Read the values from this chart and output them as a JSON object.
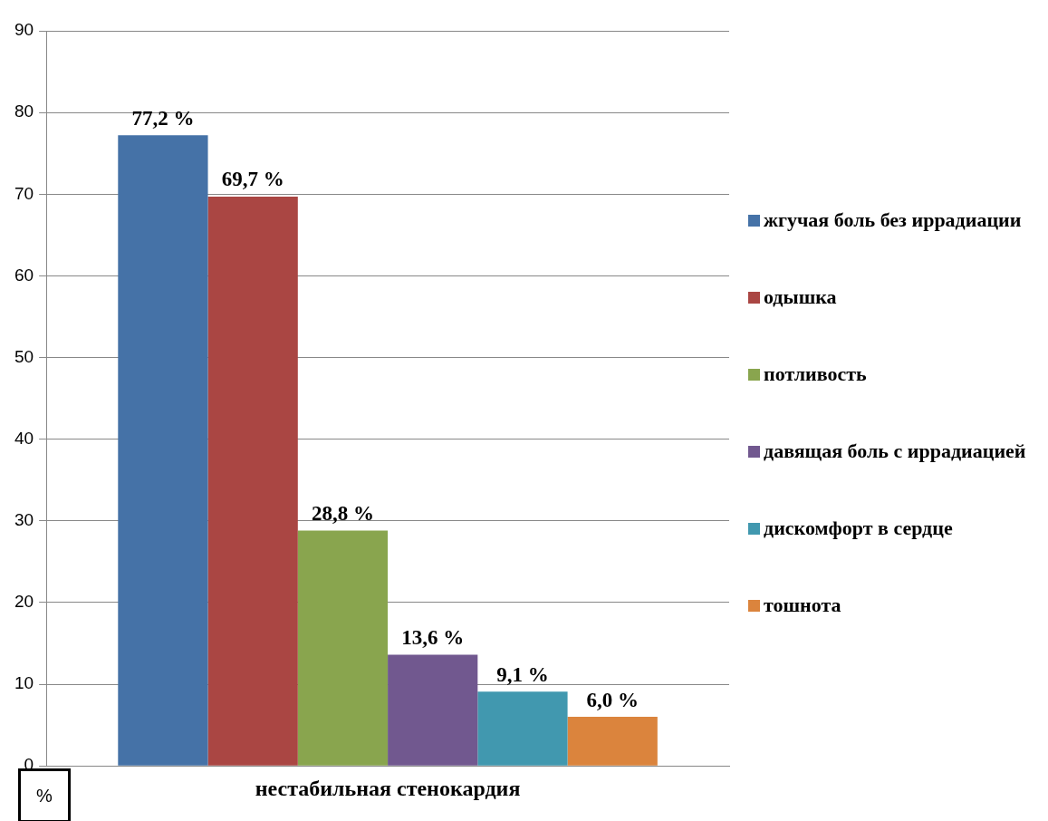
{
  "chart_data": {
    "type": "bar",
    "categories": [
      "нестабильная стенокардия"
    ],
    "ylabel": "%",
    "series": [
      {
        "name": "жгучая боль без иррадиации",
        "color": "#4572a7",
        "values": [
          77.2
        ],
        "value_labels": [
          "77,2 %"
        ]
      },
      {
        "name": "одышка",
        "color": "#aa4643",
        "values": [
          69.7
        ],
        "value_labels": [
          "69,7 %"
        ]
      },
      {
        "name": "потливость",
        "color": "#89a54e",
        "values": [
          28.8
        ],
        "value_labels": [
          "28,8 %"
        ]
      },
      {
        "name": "давящая боль с иррадиацией",
        "color": "#71588f",
        "values": [
          13.6
        ],
        "value_labels": [
          "13,6 %"
        ]
      },
      {
        "name": "дискомфорт в сердце",
        "color": "#4198af",
        "values": [
          9.1
        ],
        "value_labels": [
          "9,1 %"
        ]
      },
      {
        "name": "тошнота",
        "color": "#db843d",
        "values": [
          6.0
        ],
        "value_labels": [
          "6,0 %"
        ]
      }
    ],
    "ylim": [
      0,
      90
    ],
    "yticks": [
      0,
      10,
      20,
      30,
      40,
      50,
      60,
      70,
      80,
      90
    ],
    "grid": "y",
    "legend": "right"
  }
}
